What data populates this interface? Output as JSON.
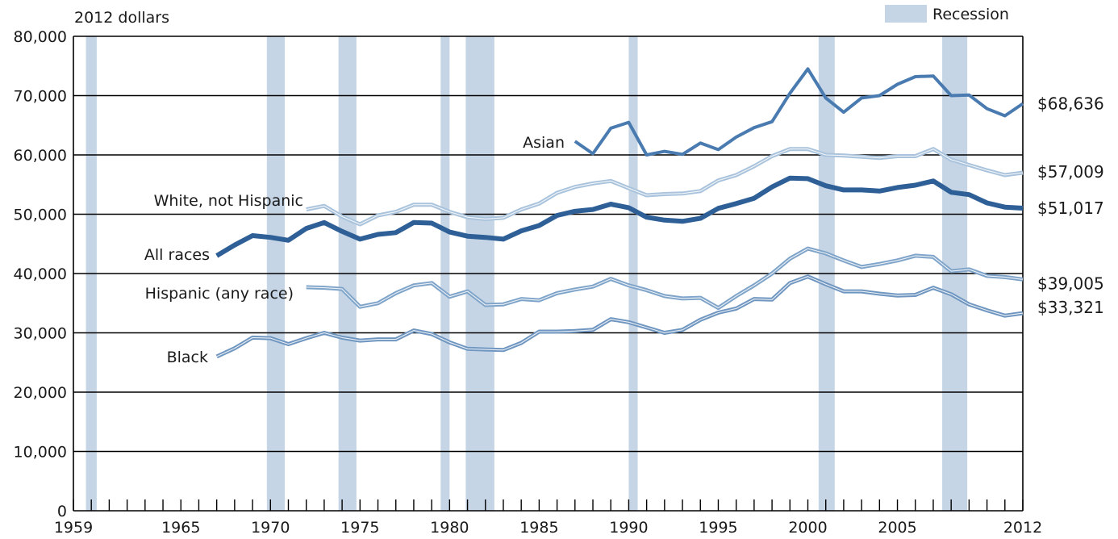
{
  "chart_data": {
    "type": "line",
    "ylabel": "2012 dollars",
    "ylim": [
      0,
      80000
    ],
    "xlim": [
      1959,
      2012
    ],
    "y_ticks": [
      "0",
      "10,000",
      "20,000",
      "30,000",
      "40,000",
      "50,000",
      "60,000",
      "70,000",
      "80,000"
    ],
    "y_tick_values": [
      0,
      10000,
      20000,
      30000,
      40000,
      50000,
      60000,
      70000,
      80000
    ],
    "x_ticks": [
      "1959",
      "1965",
      "1970",
      "1975",
      "1980",
      "1985",
      "1990",
      "1995",
      "2000",
      "2005",
      "2012"
    ],
    "x_tick_values": [
      1959,
      1965,
      1970,
      1975,
      1980,
      1985,
      1990,
      1995,
      2000,
      2005,
      2012
    ],
    "grid": "horizontal",
    "legend": {
      "label": "Recession",
      "color": "#c5d5e5",
      "position": "top-right"
    },
    "recessions": [
      [
        1959.7,
        1960.3
      ],
      [
        1969.8,
        1970.8
      ],
      [
        1973.8,
        1974.8
      ],
      [
        1979.5,
        1980.0
      ],
      [
        1980.9,
        1982.5
      ],
      [
        1990.0,
        1990.5
      ],
      [
        2000.6,
        2001.5
      ],
      [
        2007.5,
        2008.9
      ]
    ],
    "series": [
      {
        "name": "Asian",
        "color": "#4a7bb0",
        "style": "solid",
        "width": 4,
        "end_label": "$68,636",
        "x": [
          1987,
          1988,
          1989,
          1990,
          1991,
          1992,
          1993,
          1994,
          1995,
          1996,
          1997,
          1998,
          1999,
          2000,
          2001,
          2002,
          2003,
          2004,
          2005,
          2006,
          2007,
          2008,
          2009,
          2010,
          2011,
          2012
        ],
        "values": [
          62300,
          60200,
          64500,
          65500,
          60000,
          60600,
          60100,
          62000,
          60900,
          63000,
          64600,
          65600,
          70400,
          74500,
          69600,
          67200,
          69600,
          70000,
          71900,
          73200,
          73300,
          70000,
          70100,
          67800,
          66600,
          68636
        ]
      },
      {
        "name": "White, not Hispanic",
        "color": "#a9c3dc",
        "style": "double",
        "width": 5,
        "end_label": "$57,009",
        "x": [
          1972,
          1973,
          1974,
          1975,
          1976,
          1977,
          1978,
          1979,
          1980,
          1981,
          1982,
          1983,
          1984,
          1985,
          1986,
          1987,
          1988,
          1989,
          1990,
          1991,
          1992,
          1993,
          1994,
          1995,
          1996,
          1997,
          1998,
          1999,
          2000,
          2001,
          2002,
          2003,
          2004,
          2005,
          2006,
          2007,
          2008,
          2009,
          2010,
          2011,
          2012
        ],
        "values": [
          50800,
          51400,
          49600,
          48300,
          49800,
          50400,
          51600,
          51600,
          50400,
          49500,
          49200,
          49400,
          50800,
          51800,
          53600,
          54600,
          55200,
          55600,
          54400,
          53200,
          53400,
          53500,
          53900,
          55700,
          56600,
          58100,
          59800,
          61000,
          61000,
          60000,
          59900,
          59700,
          59500,
          59800,
          59800,
          61000,
          59200,
          58300,
          57400,
          56600,
          57009
        ]
      },
      {
        "name": "All races",
        "color": "#2e5f96",
        "style": "solid",
        "width": 6,
        "end_label": "$51,017",
        "x": [
          1967,
          1968,
          1969,
          1970,
          1971,
          1972,
          1973,
          1974,
          1975,
          1976,
          1977,
          1978,
          1979,
          1980,
          1981,
          1982,
          1983,
          1984,
          1985,
          1986,
          1987,
          1988,
          1989,
          1990,
          1991,
          1992,
          1993,
          1994,
          1995,
          1996,
          1997,
          1998,
          1999,
          2000,
          2001,
          2002,
          2003,
          2004,
          2005,
          2006,
          2007,
          2008,
          2009,
          2010,
          2011,
          2012
        ],
        "values": [
          43000,
          44800,
          46400,
          46100,
          45600,
          47600,
          48600,
          47100,
          45800,
          46600,
          46900,
          48600,
          48500,
          47000,
          46300,
          46100,
          45800,
          47200,
          48100,
          49800,
          50500,
          50800,
          51700,
          51100,
          49500,
          49000,
          48800,
          49300,
          51000,
          51800,
          52700,
          54600,
          56100,
          56000,
          54800,
          54100,
          54100,
          53900,
          54500,
          54900,
          55600,
          53700,
          53300,
          51900,
          51200,
          51017
        ]
      },
      {
        "name": "Hispanic (any race)",
        "color": "#7fa4c9",
        "style": "double",
        "width": 5,
        "end_label": "$39,005",
        "x": [
          1972,
          1973,
          1974,
          1975,
          1976,
          1977,
          1978,
          1979,
          1980,
          1981,
          1982,
          1983,
          1984,
          1985,
          1986,
          1987,
          1988,
          1989,
          1990,
          1991,
          1992,
          1993,
          1994,
          1995,
          1996,
          1997,
          1998,
          1999,
          2000,
          2001,
          2002,
          2003,
          2004,
          2005,
          2006,
          2007,
          2008,
          2009,
          2010,
          2011,
          2012
        ],
        "values": [
          37700,
          37600,
          37400,
          34400,
          35000,
          36700,
          38000,
          38400,
          36100,
          37000,
          34700,
          34800,
          35700,
          35500,
          36700,
          37300,
          37800,
          39100,
          38000,
          37200,
          36200,
          35800,
          35900,
          34200,
          36200,
          38000,
          40000,
          42500,
          44200,
          43400,
          42200,
          41100,
          41600,
          42200,
          43000,
          42800,
          40400,
          40700,
          39600,
          39400,
          39005
        ]
      },
      {
        "name": "Black",
        "color": "#6f96c0",
        "style": "double",
        "width": 5,
        "end_label": "$33,321",
        "x": [
          1967,
          1968,
          1969,
          1970,
          1971,
          1972,
          1973,
          1974,
          1975,
          1976,
          1977,
          1978,
          1979,
          1980,
          1981,
          1982,
          1983,
          1984,
          1985,
          1986,
          1987,
          1988,
          1989,
          1990,
          1991,
          1992,
          1993,
          1994,
          1995,
          1996,
          1997,
          1998,
          1999,
          2000,
          2001,
          2002,
          2003,
          2004,
          2005,
          2006,
          2007,
          2008,
          2009,
          2010,
          2011,
          2012
        ],
        "values": [
          26000,
          27400,
          29200,
          29100,
          28100,
          29100,
          30000,
          29200,
          28700,
          28900,
          28900,
          30400,
          29800,
          28400,
          27300,
          27200,
          27100,
          28300,
          30200,
          30200,
          30300,
          30500,
          32300,
          31800,
          30900,
          30000,
          30500,
          32200,
          33400,
          34100,
          35700,
          35600,
          38400,
          39500,
          38200,
          37000,
          37000,
          36600,
          36300,
          36400,
          37600,
          36500,
          34800,
          33800,
          32900,
          33321
        ]
      }
    ]
  }
}
